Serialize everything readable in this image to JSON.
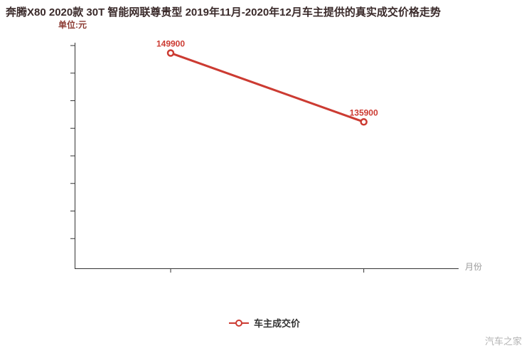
{
  "title": "奔腾X80 2020款 30T 智能网联尊贵型 2019年11月-2020年12月车主提供的真实成交价格走势",
  "axis": {
    "y_unit": "单位:元",
    "x_label": "月份"
  },
  "legend": {
    "label": "车主成交价"
  },
  "watermark": "汽车之家",
  "colors": {
    "line": "#cc3b32",
    "point_label": "#cc3b32",
    "axis": "#333333"
  },
  "chart_data": {
    "type": "line",
    "title": "奔腾X80 2020款 30T 智能网联尊贵型 2019年11月-2020年12月车主提供的真实成交价格走势",
    "ylabel": "单位:元",
    "xlabel": "月份",
    "ylim": [
      106000,
      152000
    ],
    "y_tick_count": 8,
    "grid": false,
    "legend_position": "bottom",
    "series": [
      {
        "name": "车主成交价",
        "points": [
          {
            "x_frac": 0.25,
            "value": 149900,
            "label": "149900"
          },
          {
            "x_frac": 0.753,
            "value": 135900,
            "label": "135900"
          }
        ]
      }
    ]
  }
}
